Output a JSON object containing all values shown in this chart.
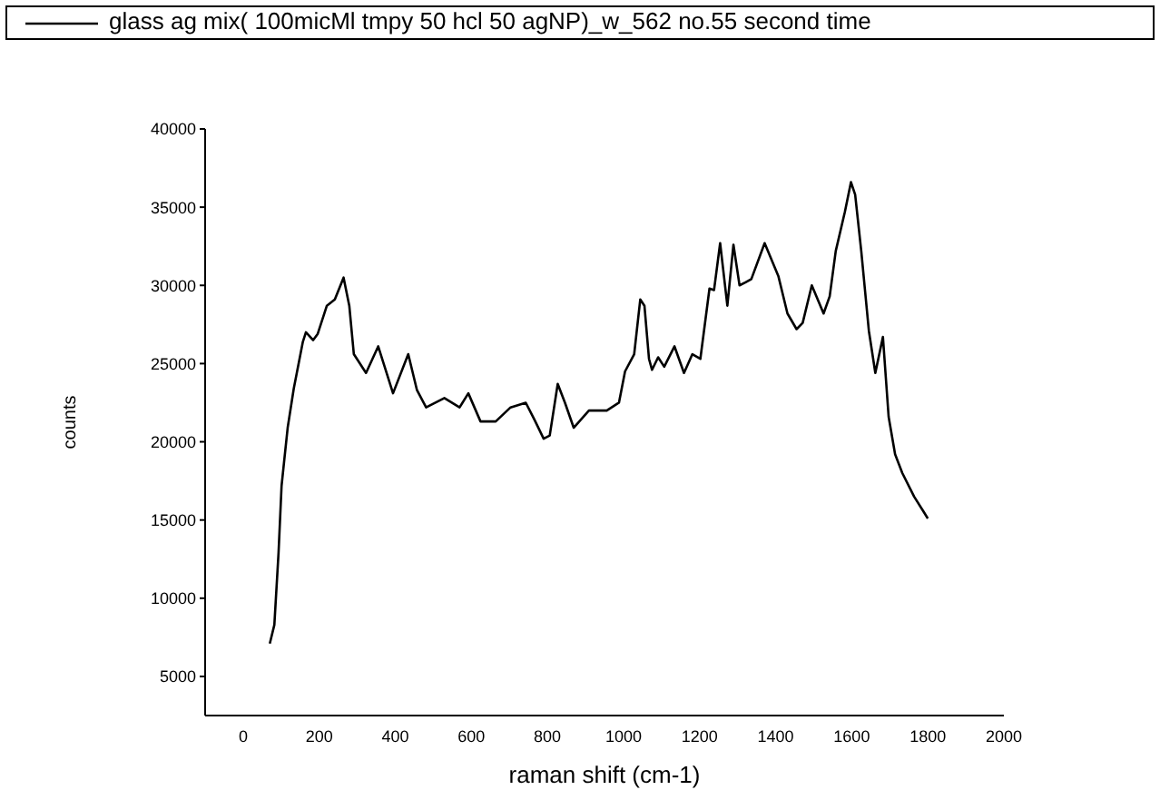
{
  "chart_data": {
    "type": "line",
    "xlabel": "raman shift (cm-1)",
    "ylabel": "counts",
    "xlim": [
      -100,
      2000
    ],
    "xticks": [
      0,
      200,
      400,
      600,
      800,
      1000,
      1200,
      1400,
      1600,
      1800,
      2000
    ],
    "ylim": [
      2500,
      40000
    ],
    "yticks": [
      5000,
      10000,
      15000,
      20000,
      25000,
      30000,
      35000,
      40000
    ],
    "grid": false,
    "legend": "top",
    "marker": "none",
    "line_style": "solid",
    "series": [
      {
        "name": "glass ag mix( 100micMl tmpy 50 hcl 50 agNP)_w_562 no.55 second time",
        "color": "#000000",
        "x": [
          70,
          82,
          93,
          101,
          117,
          133,
          157,
          165,
          184,
          196,
          220,
          241,
          264,
          279,
          291,
          323,
          355,
          394,
          434,
          457,
          481,
          529,
          569,
          592,
          624,
          664,
          703,
          743,
          766,
          790,
          806,
          827,
          846,
          869,
          909,
          956,
          988,
          1004,
          1028,
          1044,
          1055,
          1067,
          1075,
          1091,
          1107,
          1134,
          1159,
          1181,
          1202,
          1226,
          1238,
          1254,
          1273,
          1289,
          1305,
          1321,
          1336,
          1371,
          1407,
          1431,
          1455,
          1471,
          1495,
          1526,
          1542,
          1558,
          1582,
          1598,
          1609,
          1625,
          1645,
          1662,
          1682,
          1697,
          1714,
          1733,
          1764,
          1800
        ],
        "values": [
          7100,
          8300,
          12900,
          17200,
          20900,
          23400,
          26400,
          27000,
          26500,
          26900,
          28700,
          29100,
          30500,
          28700,
          25600,
          24400,
          26100,
          23100,
          25600,
          23300,
          22200,
          22800,
          22200,
          23100,
          21300,
          21300,
          22200,
          22500,
          21400,
          20200,
          20400,
          23700,
          22500,
          20900,
          22000,
          22000,
          22500,
          24500,
          25600,
          29100,
          28700,
          25300,
          24600,
          25400,
          24800,
          26100,
          24400,
          25600,
          25300,
          29800,
          29700,
          32700,
          28700,
          32600,
          30000,
          30200,
          30400,
          32700,
          30600,
          28200,
          27200,
          27600,
          30000,
          28200,
          29300,
          32200,
          34700,
          36600,
          35800,
          32200,
          27100,
          24400,
          26700,
          21600,
          19200,
          18000,
          16500,
          15100
        ]
      }
    ]
  }
}
